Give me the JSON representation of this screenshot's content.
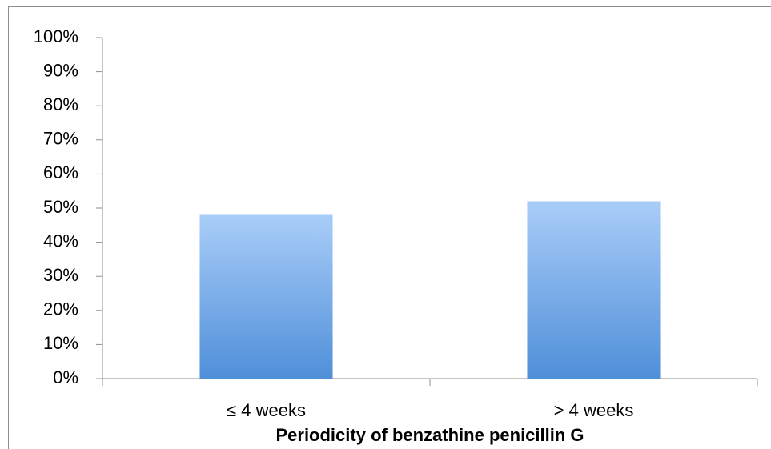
{
  "chart_data": {
    "type": "bar",
    "x_label": "Periodicity of benzathine penicillin G",
    "categories": [
      "≤ 4 weeks",
      "> 4 weeks"
    ],
    "values": [
      48,
      52
    ],
    "color": "#4f8fd9",
    "ylim": [
      0,
      100
    ],
    "yticks": [
      {
        "value": 0,
        "label": "0%"
      },
      {
        "value": 10,
        "label": "10%"
      },
      {
        "value": 20,
        "label": "20%"
      },
      {
        "value": 30,
        "label": "30%"
      },
      {
        "value": 40,
        "label": "40%"
      },
      {
        "value": 50,
        "label": "50%"
      },
      {
        "value": 60,
        "label": "60%"
      },
      {
        "value": 70,
        "label": "70%"
      },
      {
        "value": 80,
        "label": "80%"
      },
      {
        "value": 90,
        "label": "90%"
      },
      {
        "value": 100,
        "label": "100%"
      }
    ],
    "grid": false
  }
}
